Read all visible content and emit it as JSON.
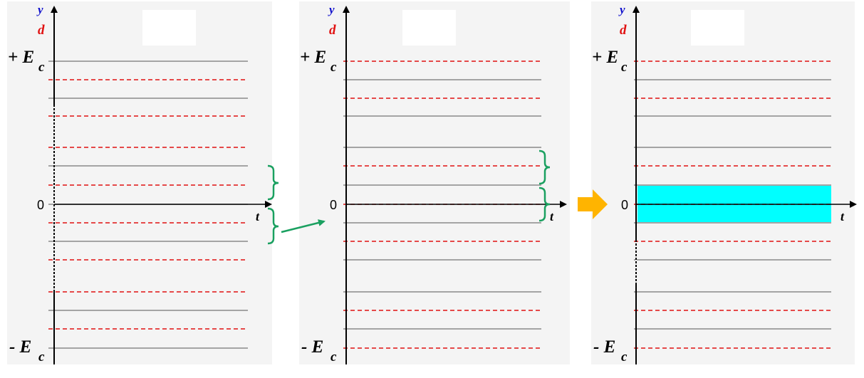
{
  "colors": {
    "background": "#ffffff",
    "panel_background": "#f4f4f4",
    "y_label": "#1010cc",
    "d_label": "#e01010",
    "solid_line": "#8a8a8a",
    "dashed_line": "#e01010",
    "axis": "#000000",
    "bracket": "#1aa060",
    "band_fill": "#00ffff",
    "big_arrow": "#ffb400"
  },
  "icons": {
    "transition_arrow": "green-arrow-icon",
    "result_arrow": "orange-right-arrow-icon"
  },
  "panels": [
    {
      "y_label": "y",
      "d_label": "d",
      "top_label": "+ E",
      "top_sub": "c",
      "bottom_label": "- E",
      "bottom_sub": "c",
      "zero_label": "0",
      "t_label": "t"
    },
    {
      "y_label": "y",
      "d_label": "d",
      "top_label": "+ E",
      "top_sub": "c",
      "bottom_label": "- E",
      "bottom_sub": "c",
      "zero_label": "0",
      "t_label": "t"
    },
    {
      "y_label": "y",
      "d_label": "d",
      "top_label": "+ E",
      "top_sub": "c",
      "bottom_label": "- E",
      "bottom_sub": "c",
      "zero_label": "0",
      "t_label": "t"
    }
  ]
}
